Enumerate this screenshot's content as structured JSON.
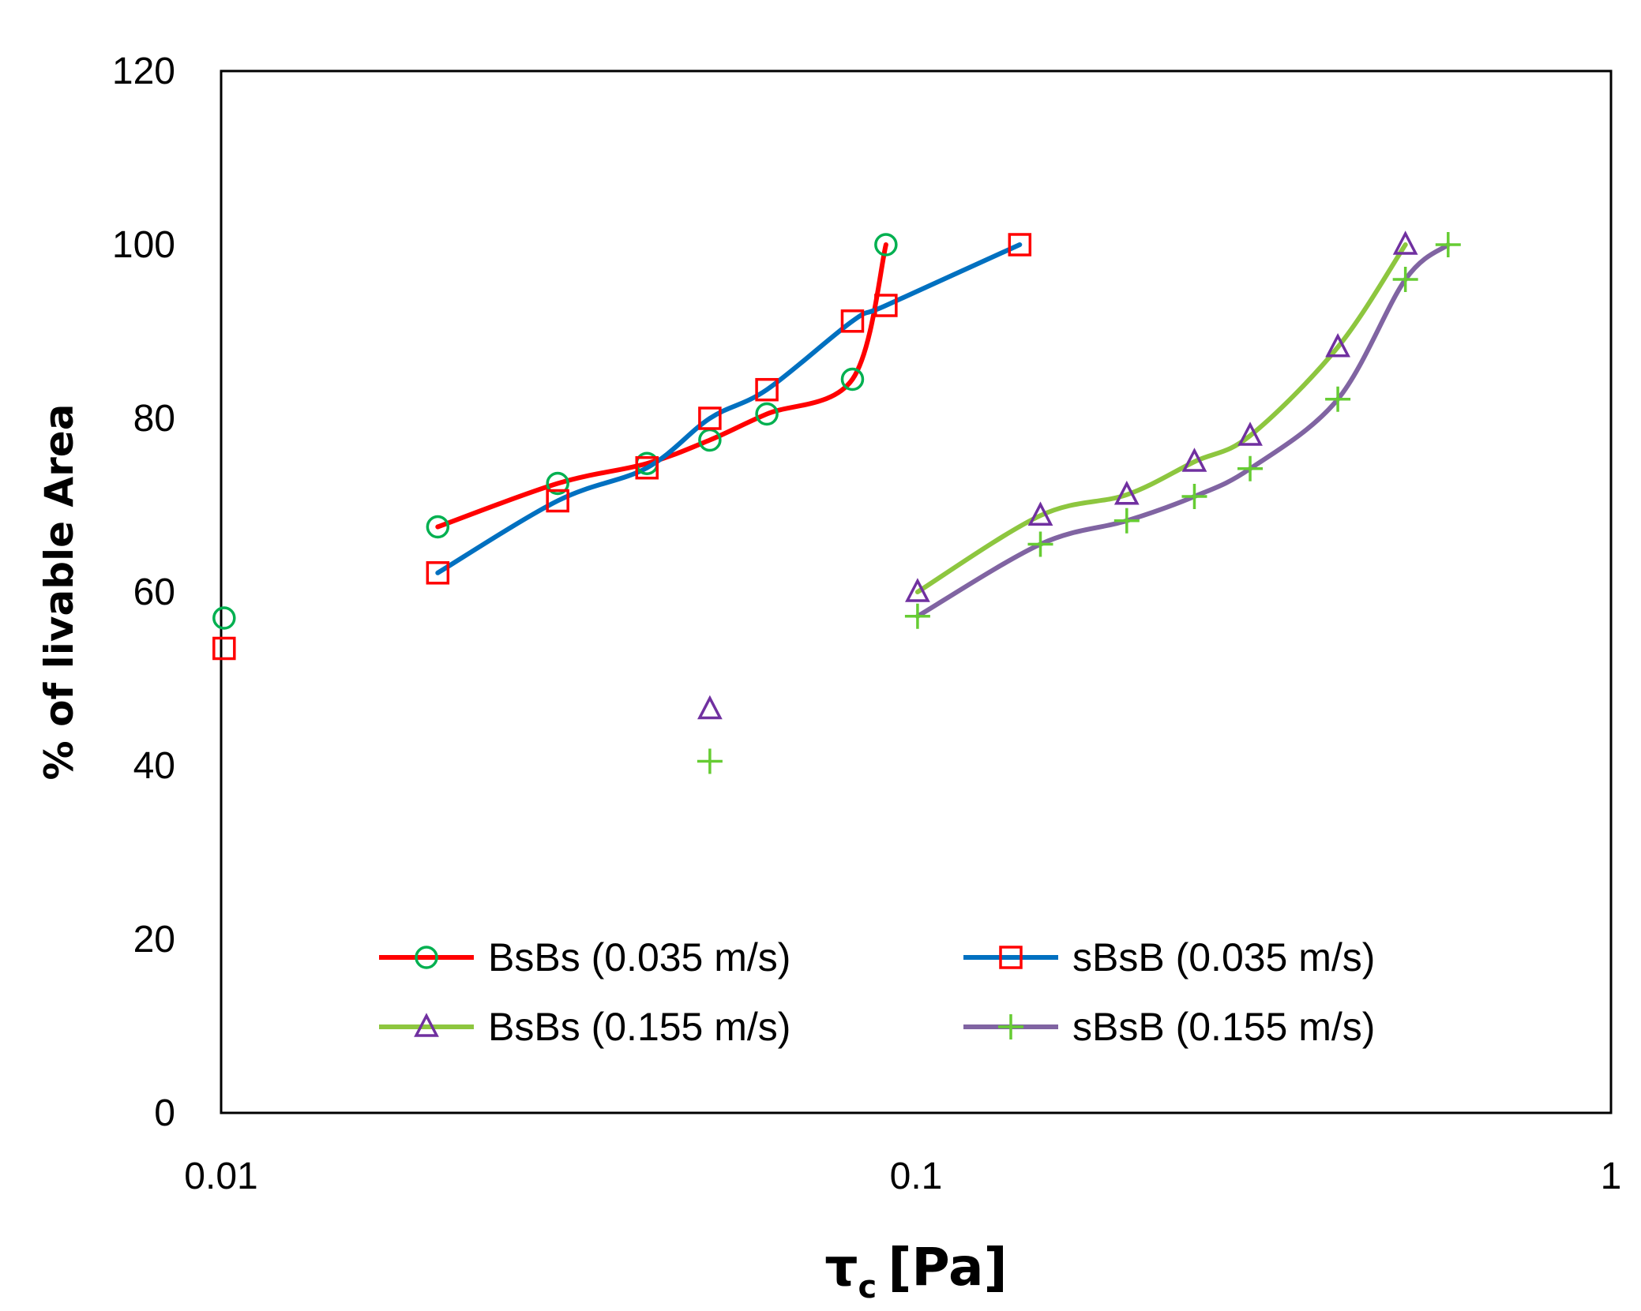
{
  "chart_data": {
    "type": "line",
    "title": "",
    "xlabel": "τ",
    "xlabel_sub": "c",
    "xlabel_unit": "[Pa]",
    "ylabel": "% of livable Area",
    "xscale": "log",
    "xlim": [
      0.01,
      1
    ],
    "ylim": [
      0,
      120
    ],
    "x_ticks": [
      0.01,
      0.1,
      1
    ],
    "x_tick_labels": [
      "0.01",
      "0.1",
      "1"
    ],
    "y_ticks": [
      0,
      20,
      40,
      60,
      80,
      100,
      120
    ],
    "y_tick_labels": [
      "0",
      "20",
      "40",
      "60",
      "80",
      "100",
      "120"
    ],
    "grid": false,
    "legend_position": "bottom-center",
    "series": [
      {
        "name": "BsBs (0.035 m/s)",
        "line_color": "#ff0000",
        "marker": "circle",
        "marker_color": "#00b050",
        "x": [
          0.0205,
          0.0305,
          0.041,
          0.0505,
          0.061,
          0.081,
          0.0905
        ],
        "y": [
          67.5,
          72.5,
          74.8,
          77.5,
          80.5,
          84.5,
          100
        ]
      },
      {
        "name": "sBsB (0.035 m/s)",
        "line_color": "#0070c0",
        "marker": "square",
        "marker_color": "#ff0000",
        "x": [
          0.0205,
          0.0305,
          0.041,
          0.0505,
          0.061,
          0.081,
          0.0905,
          0.141
        ],
        "y": [
          62.2,
          70.5,
          74.3,
          80,
          83.3,
          91.2,
          93,
          100
        ]
      },
      {
        "name": "BsBs (0.155 m/s)",
        "line_color": "#8dc63f",
        "marker": "triangle",
        "marker_color": "#7030a0",
        "x": [
          0.1005,
          0.151,
          0.201,
          0.2515,
          0.3025,
          0.4045,
          0.506
        ],
        "y": [
          60,
          68.8,
          71.2,
          75,
          78,
          88.2,
          100
        ]
      },
      {
        "name": "sBsB (0.155 m/s)",
        "line_color": "#8064a2",
        "marker": "plus",
        "marker_color": "#66cc33",
        "x": [
          0.1005,
          0.151,
          0.201,
          0.2515,
          0.3025,
          0.4045,
          0.506,
          0.583
        ],
        "y": [
          57.2,
          65.5,
          68.2,
          71,
          74.2,
          82.2,
          96,
          100
        ]
      }
    ],
    "unconnected_points": [
      {
        "series": "BsBs (0.035 m/s)",
        "x": 0.0101,
        "y": 57
      },
      {
        "series": "sBsB (0.035 m/s)",
        "x": 0.0101,
        "y": 53.5
      },
      {
        "series": "BsBs (0.155 m/s)",
        "x": 0.0505,
        "y": 46.5
      },
      {
        "series": "sBsB (0.155 m/s)",
        "x": 0.0505,
        "y": 40.5
      }
    ]
  }
}
